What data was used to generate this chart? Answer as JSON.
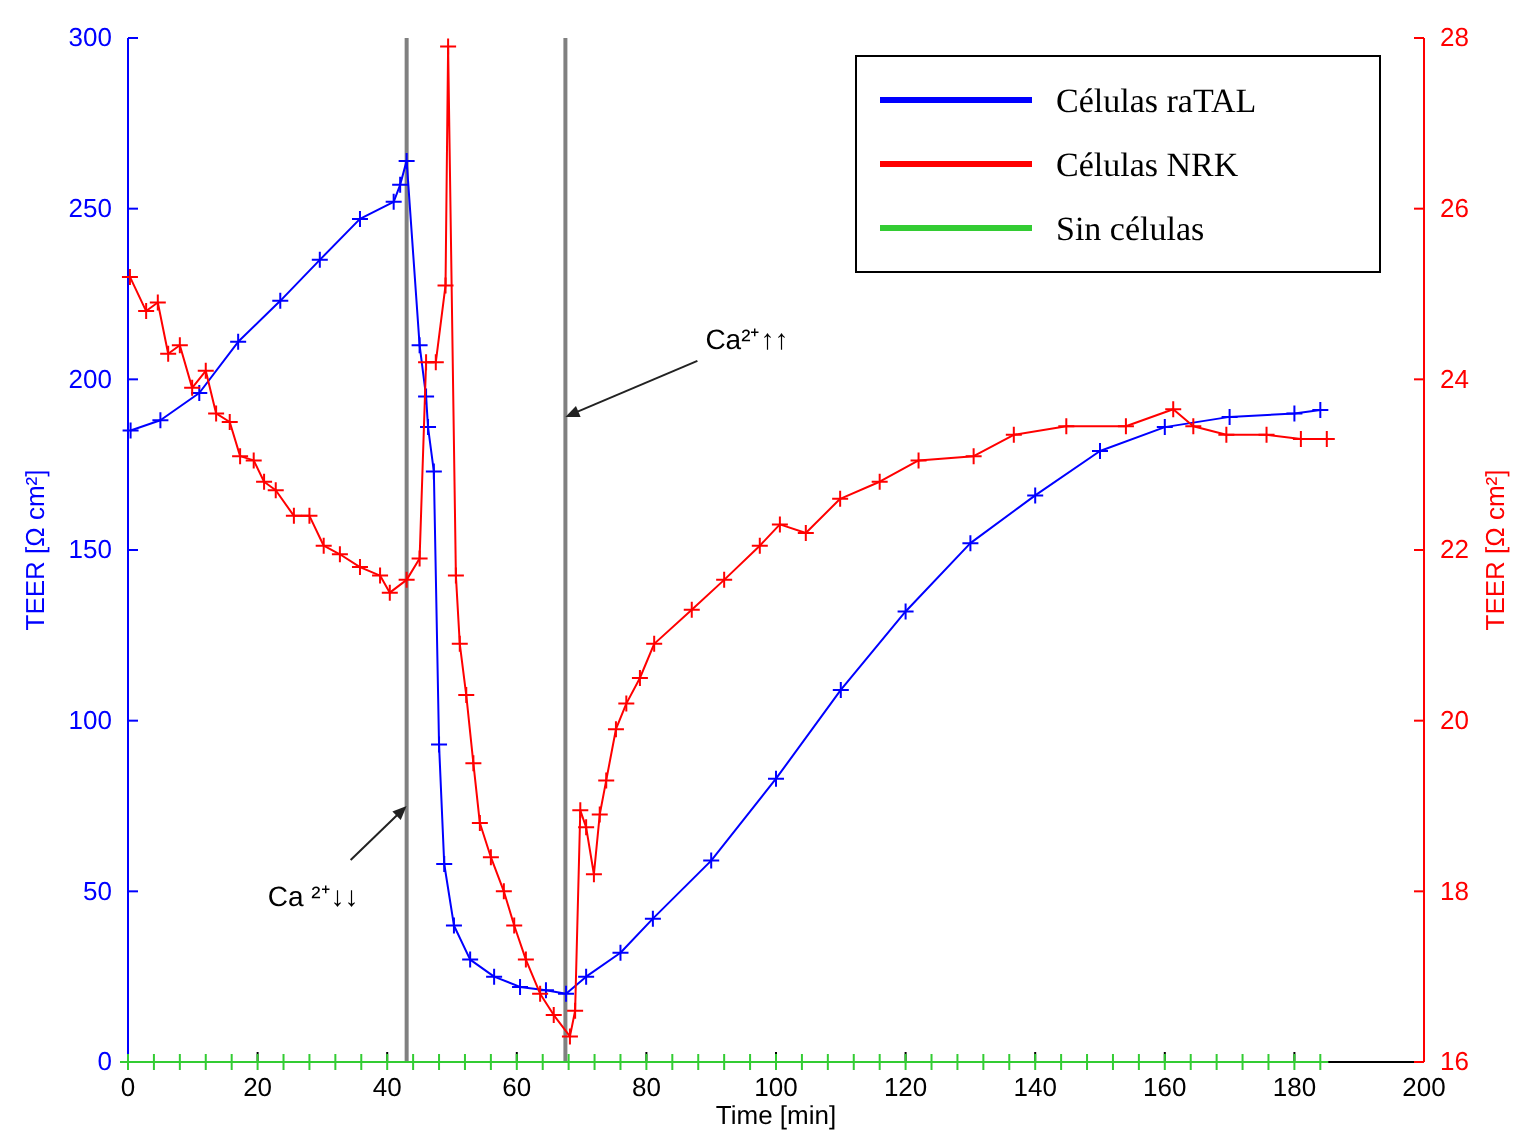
{
  "chart_data": {
    "type": "line",
    "xlabel": "Time [min]",
    "ylabel": "TEER [Ω cm²]",
    "y2label": "TEER [Ω cm²]",
    "xlim": [
      0,
      200
    ],
    "xticks": [
      0,
      20,
      40,
      60,
      80,
      100,
      120,
      140,
      160,
      180,
      200
    ],
    "ylim": [
      0,
      300
    ],
    "yticks": [
      0,
      50,
      100,
      150,
      200,
      250,
      300
    ],
    "y2lim": [
      16,
      28
    ],
    "y2ticks": [
      16,
      18,
      20,
      22,
      24,
      26,
      28
    ],
    "grid": false,
    "legend": "top right",
    "marker": "cross",
    "line_style": "solid",
    "series": [
      {
        "name": "Células raTAL",
        "color": "#0000ff",
        "x": [
          0.4,
          5,
          11,
          17,
          23.5,
          29.6,
          35.8,
          41,
          42,
          43,
          45,
          46,
          46.3,
          47.2,
          48,
          48.8,
          50.3,
          52.8,
          56.5,
          60.5,
          64.5,
          67.6,
          70.7,
          76,
          81,
          90,
          100,
          110,
          120,
          130,
          140,
          150,
          160,
          170,
          180,
          184
        ],
        "values": [
          185,
          188,
          196,
          211,
          223,
          235,
          247,
          252,
          257,
          264,
          210,
          195,
          186,
          173,
          93,
          58,
          40,
          30,
          25,
          22,
          21,
          20,
          25,
          32,
          42,
          59,
          83,
          109,
          132,
          152,
          166,
          179,
          186,
          189,
          190,
          191
        ]
      },
      {
        "name": "Células NRK",
        "color": "#ff0000",
        "axis": "y2",
        "x": [
          0.3,
          2.8,
          4.6,
          6.2,
          8,
          9.9,
          12,
          13.6,
          15.7,
          17.3,
          19.4,
          21,
          22.8,
          25.6,
          28,
          30.2,
          32.7,
          35.8,
          38.9,
          40.4,
          43,
          45,
          46,
          47.5,
          49,
          49.4,
          50.6,
          51.2,
          52.2,
          53.3,
          54.3,
          56,
          58,
          59.6,
          61.4,
          63.6,
          65.7,
          68.2,
          69,
          69.8,
          70.7,
          71.9,
          72.8,
          73.8,
          75.3,
          76.9,
          79,
          81.2,
          87,
          92,
          97.5,
          100.6,
          104.6,
          109.9,
          116,
          122,
          130.5,
          136.7,
          144.8,
          154,
          161.3,
          164.4,
          169.5,
          175.7,
          181,
          185
        ],
        "values": [
          25.2,
          24.8,
          24.9,
          24.3,
          24.4,
          23.9,
          24.1,
          23.6,
          23.5,
          23.1,
          23.05,
          22.8,
          22.7,
          22.4,
          22.4,
          22.05,
          21.95,
          21.8,
          21.7,
          21.5,
          21.65,
          21.9,
          24.2,
          24.2,
          25.1,
          27.9,
          21.7,
          20.9,
          20.3,
          19.5,
          18.8,
          18.4,
          18,
          17.6,
          17.2,
          16.8,
          16.55,
          16.3,
          16.6,
          18.95,
          18.75,
          18.2,
          18.9,
          19.3,
          19.9,
          20.2,
          20.5,
          20.9,
          21.3,
          21.65,
          22.05,
          22.3,
          22.2,
          22.6,
          22.8,
          23.05,
          23.1,
          23.35,
          23.45,
          23.45,
          23.65,
          23.45,
          23.35,
          23.35,
          23.3,
          23.3
        ]
      },
      {
        "name": "Sin células",
        "color": "#33cc33",
        "x": [
          0,
          4,
          8,
          12,
          16,
          20,
          24,
          28,
          32,
          36,
          40,
          44,
          48,
          52,
          56,
          60,
          64,
          68,
          72,
          76,
          80,
          84,
          88,
          92,
          96,
          100,
          104,
          108,
          112,
          116,
          120,
          124,
          128,
          132,
          136,
          140,
          144,
          148,
          152,
          156,
          160,
          164,
          168,
          172,
          176,
          180,
          184
        ],
        "values": [
          0,
          0,
          0,
          0,
          0,
          0,
          0,
          0,
          0,
          0,
          0,
          0,
          0,
          0,
          0,
          0,
          0,
          0,
          0,
          0,
          0,
          0,
          0,
          0,
          0,
          0,
          0,
          0,
          0,
          0,
          0,
          0,
          0,
          0,
          0,
          0,
          0,
          0,
          0,
          0,
          0,
          0,
          0,
          0,
          0,
          0,
          0
        ]
      }
    ],
    "ref_lines": [
      {
        "axis": "x",
        "value": 43,
        "color": "#808080"
      },
      {
        "axis": "x",
        "value": 67.5,
        "color": "#808080"
      }
    ],
    "annotations": [
      {
        "text": "Ca ²⁺↓↓",
        "x": 43,
        "y": 75
      },
      {
        "text": "Ca²⁺↑↑",
        "x": 67.5,
        "y": 189
      }
    ]
  }
}
